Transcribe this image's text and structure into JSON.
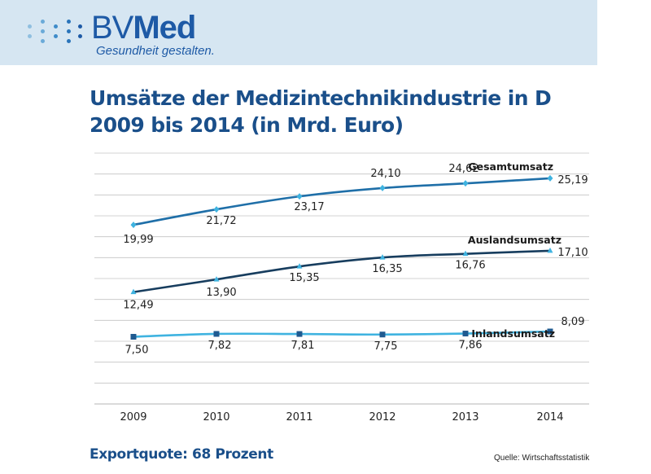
{
  "brand": {
    "name_part1": "BV",
    "name_part2": "Med",
    "tagline": "Gesundheit gestalten.",
    "color": "#1e5aa6"
  },
  "title": {
    "line1": "Umsätze der Medizintechnikindustrie in D",
    "line2": "2009 bis 2014 (in Mrd. Euro)"
  },
  "footer": {
    "export_quote": "Exportquote: 68 Prozent",
    "source": "Quelle: Wirtschaftsstatistik"
  },
  "chart_data": {
    "type": "line",
    "categories": [
      "2009",
      "2010",
      "2011",
      "2012",
      "2013",
      "2014"
    ],
    "ylim": [
      0,
      28
    ],
    "grid": true,
    "series": [
      {
        "name": "Gesamtumsatz",
        "values": [
          19.99,
          21.72,
          23.17,
          24.1,
          24.62,
          25.19
        ],
        "labels": [
          "19,99",
          "21,72",
          "23,17",
          "24,10",
          "24,62",
          "25,19"
        ],
        "color": "#1f6fa8",
        "marker": "diamond",
        "marker_color": "#3fb3e0"
      },
      {
        "name": "Auslandsumsatz",
        "values": [
          12.49,
          13.9,
          15.35,
          16.35,
          16.76,
          17.1
        ],
        "labels": [
          "12,49",
          "13,90",
          "15,35",
          "16,35",
          "16,76",
          "17,10"
        ],
        "color": "#173d5e",
        "marker": "triangle",
        "marker_color": "#3fb3e0"
      },
      {
        "name": "Inlandsumsatz",
        "values": [
          7.5,
          7.82,
          7.81,
          7.75,
          7.86,
          8.09
        ],
        "labels": [
          "7,50",
          "7,82",
          "7,81",
          "7,75",
          "7,86",
          "8,09"
        ],
        "color": "#3fb3e0",
        "marker": "square",
        "marker_color": "#1f5a90"
      }
    ]
  }
}
